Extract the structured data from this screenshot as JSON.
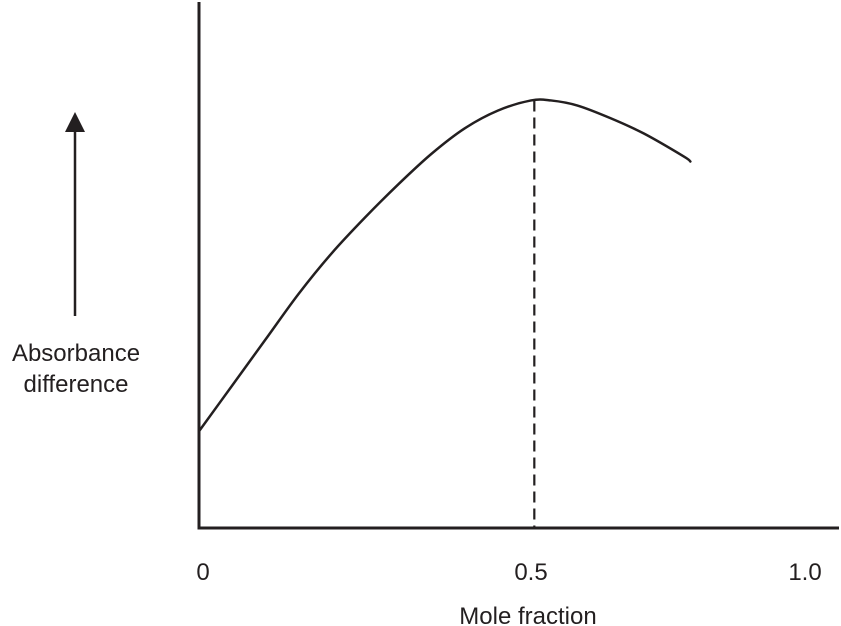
{
  "chart_data": {
    "type": "line",
    "title": "",
    "xlabel": "Mole fraction",
    "ylabel": [
      "Absorbance",
      "difference"
    ],
    "xlim": [
      0,
      1.0
    ],
    "ylim": [
      0,
      1.0
    ],
    "xticks": [
      {
        "value": 0,
        "label": "0"
      },
      {
        "value": 0.5,
        "label": "0.5"
      },
      {
        "value": 1.0,
        "label": "1.0"
      }
    ],
    "grid": false,
    "legend": "none",
    "series": [
      {
        "points": [
          {
            "x": 0.0,
            "y": 0.19
          },
          {
            "x": 0.05,
            "y": 0.28
          },
          {
            "x": 0.1,
            "y": 0.37
          },
          {
            "x": 0.15,
            "y": 0.46
          },
          {
            "x": 0.2,
            "y": 0.54
          },
          {
            "x": 0.25,
            "y": 0.61
          },
          {
            "x": 0.3,
            "y": 0.675
          },
          {
            "x": 0.35,
            "y": 0.735
          },
          {
            "x": 0.4,
            "y": 0.785
          },
          {
            "x": 0.45,
            "y": 0.82
          },
          {
            "x": 0.5,
            "y": 0.84
          },
          {
            "x": 0.53,
            "y": 0.84
          },
          {
            "x": 0.57,
            "y": 0.83
          },
          {
            "x": 0.62,
            "y": 0.805
          },
          {
            "x": 0.67,
            "y": 0.775
          },
          {
            "x": 0.73,
            "y": 0.73
          },
          {
            "x": 0.74,
            "y": 0.72
          }
        ]
      }
    ],
    "annotations": [
      {
        "type": "vline",
        "x": 0.505,
        "y_top": 0.84,
        "style": "dashed"
      }
    ],
    "colors": {
      "line": "#231f20",
      "axis": "#231f20",
      "text": "#231f20"
    }
  }
}
